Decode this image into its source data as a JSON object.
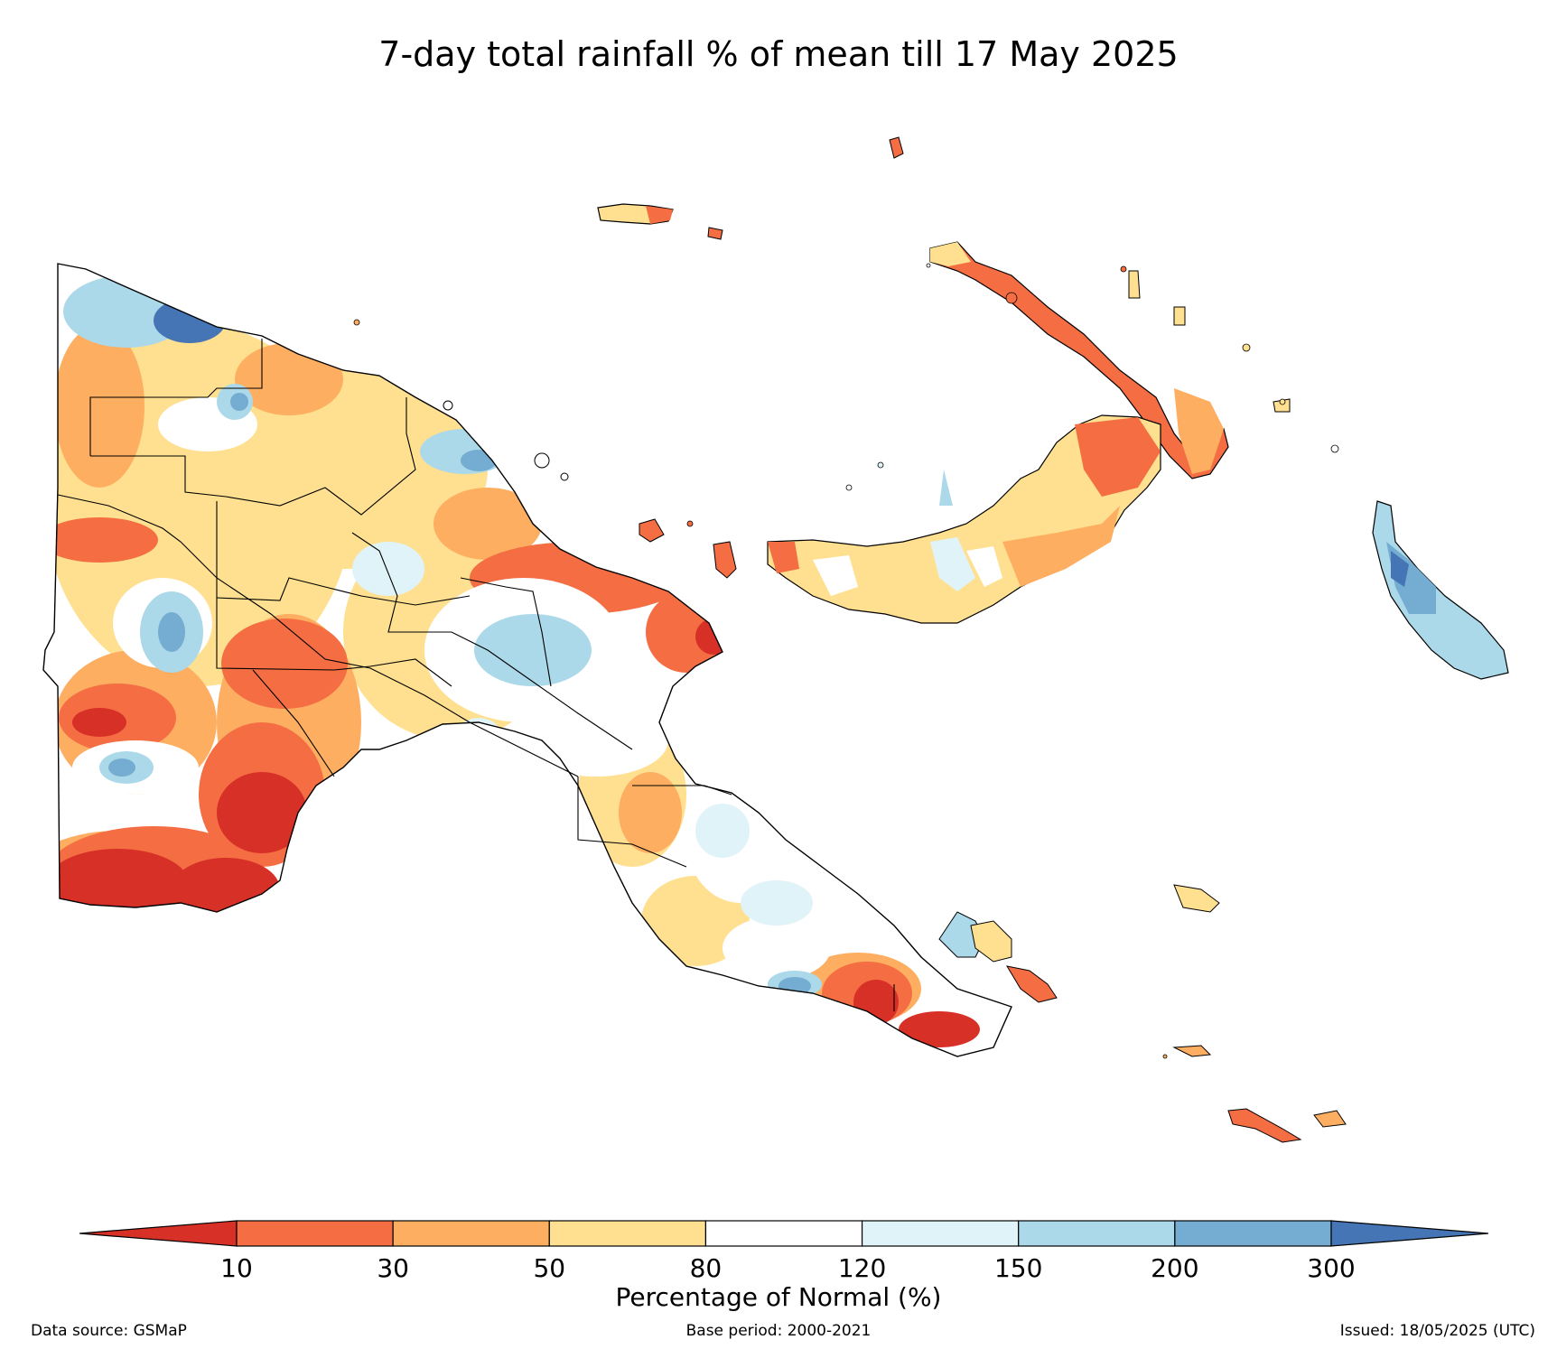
{
  "title": "7-day total rainfall % of mean till 17 May 2025",
  "legend": {
    "label": "Percentage of Normal (%)",
    "ticks": [
      "10",
      "30",
      "50",
      "80",
      "120",
      "150",
      "200",
      "300"
    ],
    "bins": [
      {
        "range": "<10",
        "color": "#d73027"
      },
      {
        "range": "10-30",
        "color": "#f46d43"
      },
      {
        "range": "30-50",
        "color": "#fdae61"
      },
      {
        "range": "50-80",
        "color": "#fee090"
      },
      {
        "range": "80-120",
        "color": "#ffffff"
      },
      {
        "range": "120-150",
        "color": "#e0f3f8"
      },
      {
        "range": "150-200",
        "color": "#abd9e9"
      },
      {
        "range": "200-300",
        "color": "#74add1"
      },
      {
        "range": ">300",
        "color": "#4575b4"
      }
    ]
  },
  "footer": {
    "source": "Data source: GSMaP",
    "base_period": "Base period: 2000-2021",
    "issued": "Issued: 18/05/2025 (UTC)"
  }
}
